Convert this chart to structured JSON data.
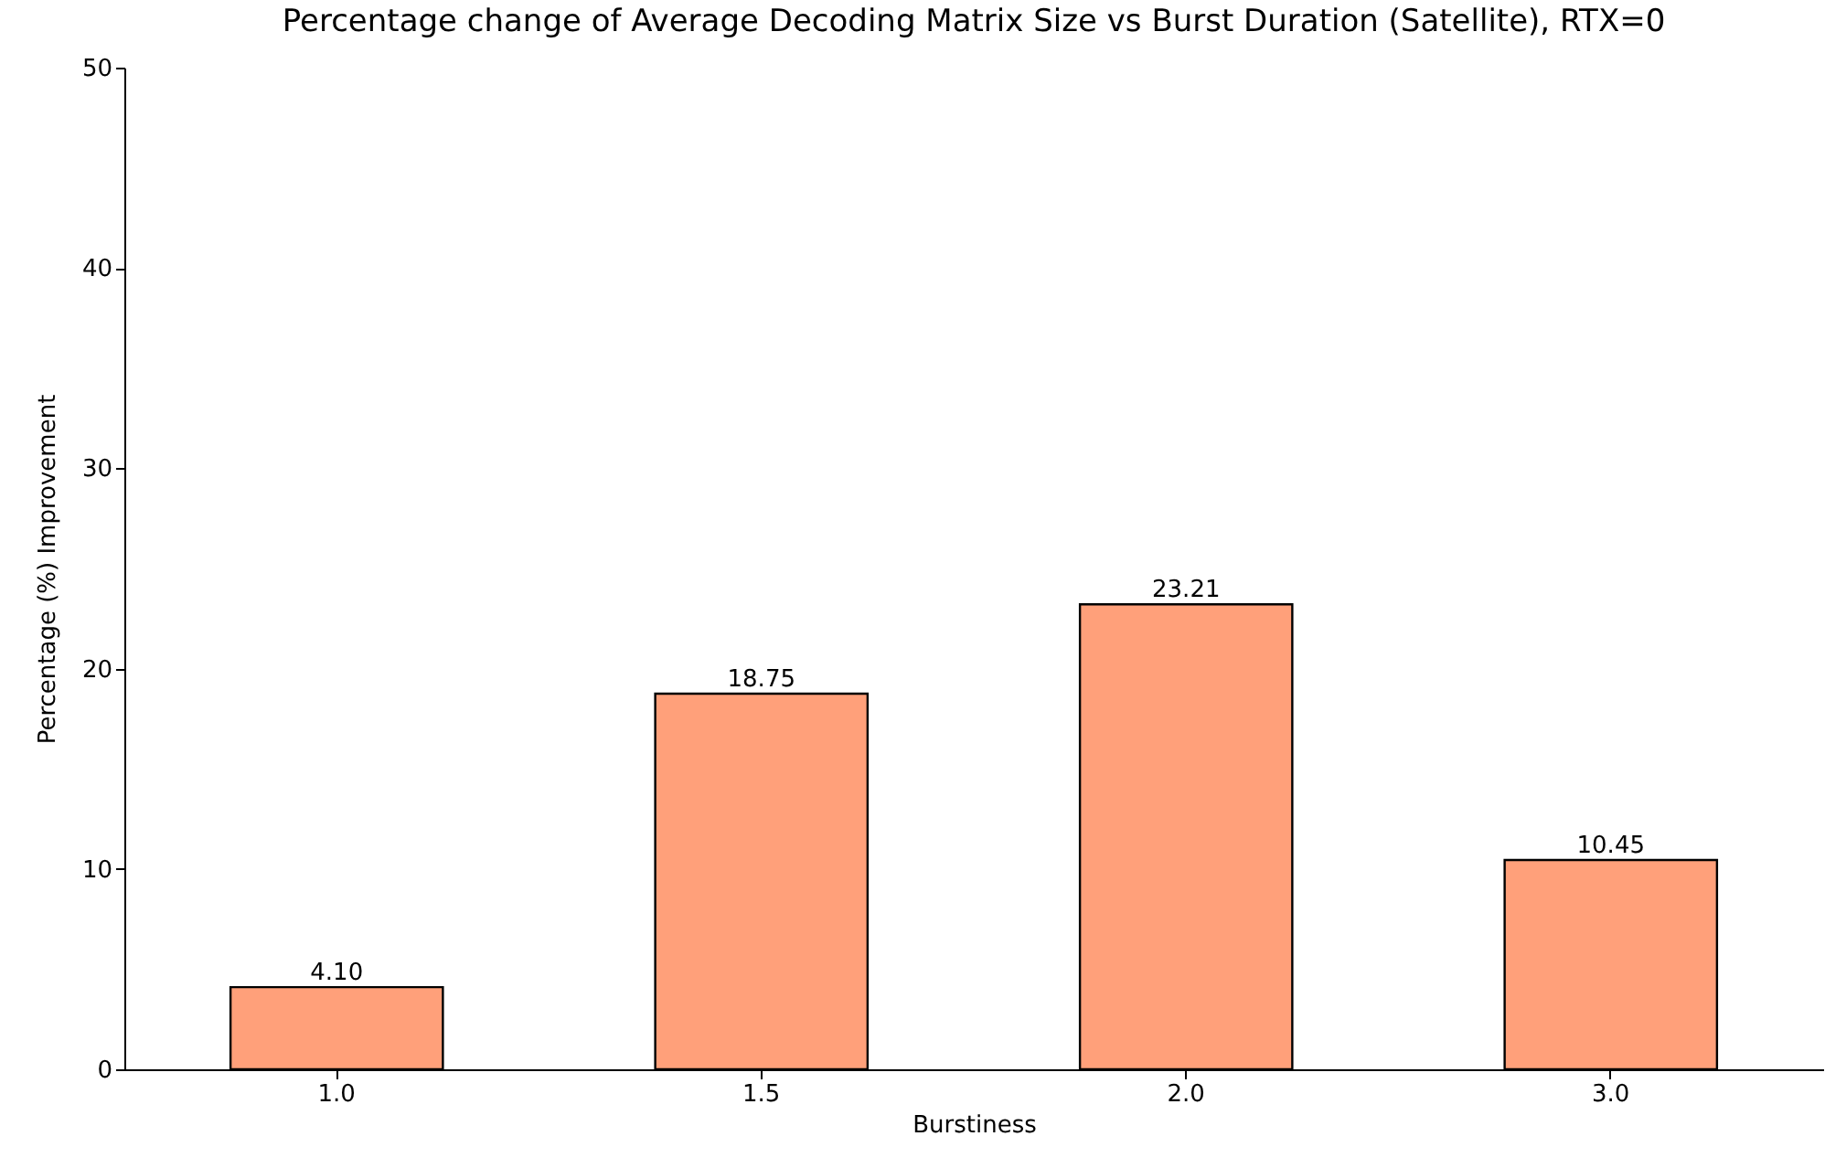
{
  "chart_data": {
    "type": "bar",
    "title": "Percentage change of Average Decoding Matrix Size vs Burst Duration (Satellite), RTX=0",
    "xlabel": "Burstiness",
    "ylabel": "Percentage (%) Improvement",
    "categories": [
      "1.0",
      "1.5",
      "2.0",
      "3.0"
    ],
    "values": [
      4.1,
      18.75,
      23.21,
      10.45
    ],
    "value_labels": [
      "4.10",
      "18.75",
      "23.21",
      "10.45"
    ],
    "color": "#ffa07a",
    "ylim": [
      0,
      50
    ],
    "yticks": [
      0,
      10,
      20,
      30,
      40,
      50
    ],
    "grid": false
  }
}
